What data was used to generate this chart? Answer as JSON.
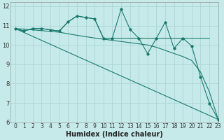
{
  "background_color": "#c6eaea",
  "grid_color": "#aed4d4",
  "line_color": "#1a7a6e",
  "xlabel": "Humidex (Indice chaleur)",
  "xlim": [
    -0.5,
    23
  ],
  "ylim": [
    6,
    12.2
  ],
  "xticks": [
    0,
    1,
    2,
    3,
    4,
    5,
    6,
    7,
    8,
    9,
    10,
    11,
    12,
    13,
    14,
    15,
    16,
    17,
    18,
    19,
    20,
    21,
    22,
    23
  ],
  "yticks": [
    6,
    7,
    8,
    9,
    10,
    11,
    12
  ],
  "series1_x": [
    0,
    1,
    2,
    3,
    4,
    5,
    6,
    7,
    8,
    9,
    10,
    11,
    12,
    13,
    14,
    15,
    16,
    17,
    18,
    19,
    20,
    21,
    22,
    23
  ],
  "series1_y": [
    10.85,
    10.72,
    10.85,
    10.85,
    10.78,
    10.72,
    11.2,
    11.5,
    11.42,
    11.35,
    10.35,
    10.35,
    11.85,
    10.82,
    10.35,
    9.55,
    10.35,
    11.18,
    9.82,
    10.35,
    9.95,
    8.35,
    6.98,
    6.15
  ],
  "series2_x": [
    0,
    1,
    2,
    3,
    4,
    5,
    6,
    7,
    8,
    9,
    10,
    11,
    12,
    13,
    14,
    15,
    16,
    17,
    18,
    19,
    20,
    21,
    22
  ],
  "series2_y": [
    10.85,
    10.72,
    10.85,
    10.85,
    10.78,
    10.72,
    11.2,
    11.5,
    11.42,
    11.35,
    10.35,
    10.35,
    10.35,
    10.35,
    10.35,
    10.35,
    10.35,
    10.35,
    10.35,
    10.35,
    10.35,
    10.35,
    10.35
  ],
  "series3_x": [
    0,
    1,
    2,
    3,
    4,
    5,
    6,
    7,
    8,
    9,
    10,
    11,
    12,
    13,
    14,
    15,
    16,
    17,
    18,
    19,
    20,
    21,
    22,
    23
  ],
  "series3_y": [
    10.85,
    10.82,
    10.78,
    10.74,
    10.7,
    10.66,
    10.58,
    10.5,
    10.43,
    10.36,
    10.3,
    10.24,
    10.18,
    10.12,
    10.06,
    10.0,
    9.88,
    9.72,
    9.56,
    9.4,
    9.2,
    8.6,
    7.58,
    6.15
  ],
  "series4_x": [
    0,
    23
  ],
  "series4_y": [
    10.85,
    6.15
  ],
  "font_size_label": 7,
  "font_size_tick": 5.5
}
